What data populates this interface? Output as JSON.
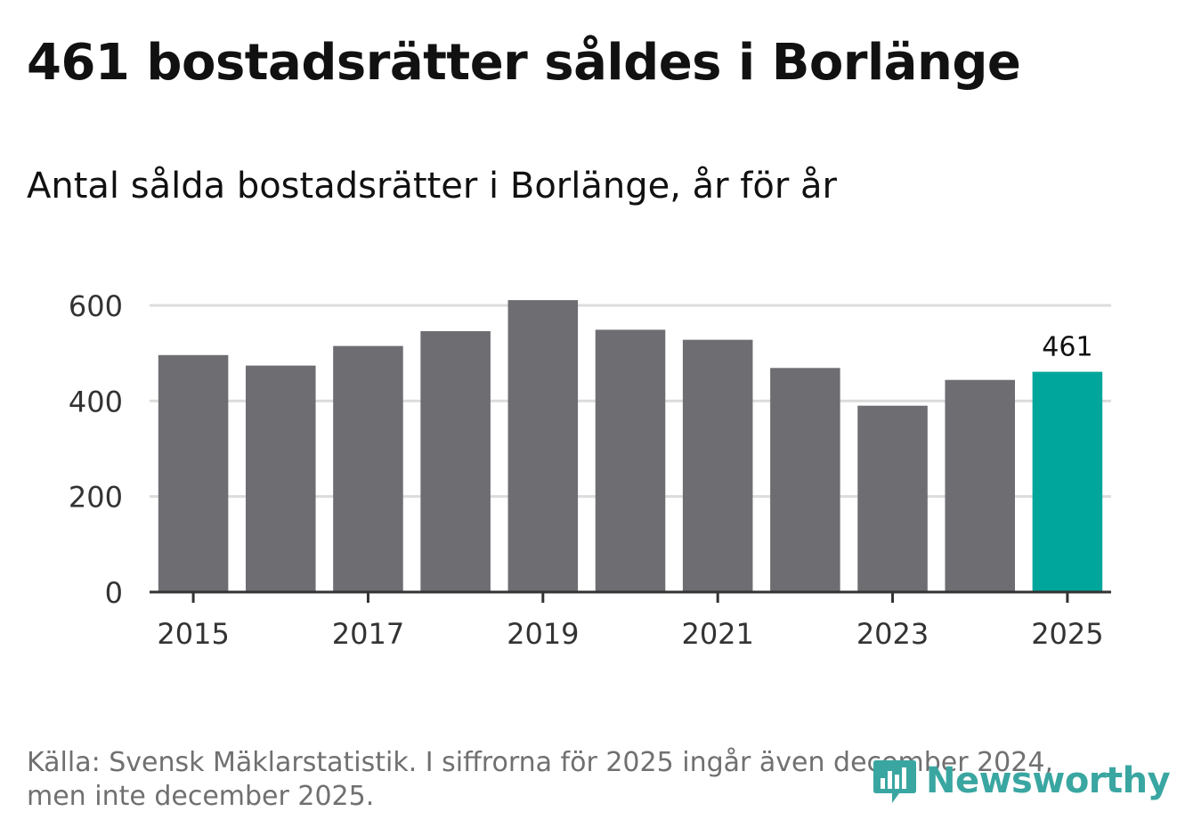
{
  "header": {
    "title": "461 bostadsrätter såldes i Borlänge",
    "subtitle": "Antal sålda bostadsrätter i Borlänge, år för år"
  },
  "footer": {
    "source_line1": "Källa: Svensk Mäklarstatistik. I siffrorna för 2025 ingår även december 2024,",
    "source_line2": "men inte december 2025.",
    "brand": "Newsworthy"
  },
  "colors": {
    "bar": "#6e6d72",
    "highlight": "#00a69b",
    "grid": "#dcdcdc",
    "axis": "#333333",
    "brand": "#3aa6a1"
  },
  "chart_data": {
    "type": "bar",
    "title": "Antal sålda bostadsrätter i Borlänge, år för år",
    "xlabel": "",
    "ylabel": "",
    "categories": [
      "2015",
      "2016",
      "2017",
      "2018",
      "2019",
      "2020",
      "2021",
      "2022",
      "2023",
      "2024",
      "2025"
    ],
    "values": [
      496,
      474,
      515,
      546,
      611,
      549,
      528,
      469,
      390,
      444,
      461
    ],
    "highlight_index": 10,
    "data_labels": [
      {
        "index": 10,
        "text": "461"
      }
    ],
    "yticks": [
      0,
      200,
      400,
      600
    ],
    "xtick_labels": [
      "2015",
      "2017",
      "2019",
      "2021",
      "2023",
      "2025"
    ],
    "ylim": [
      0,
      600
    ],
    "grid": true
  }
}
